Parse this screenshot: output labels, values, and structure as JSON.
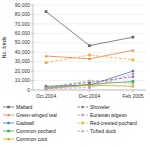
{
  "chart_data": {
    "type": "line",
    "categories": [
      "Oct 2004",
      "Dec 2004",
      "Feb 2005"
    ],
    "ylabel": "No. birds",
    "series": [
      {
        "name": "Mallard",
        "color": "#666666",
        "line_style": "solid",
        "marker": "square",
        "values": [
          83000,
          47000,
          56000
        ]
      },
      {
        "name": "Green-winged teal",
        "color": "#e8804a",
        "line_style": "solid",
        "marker": "triangle",
        "values": [
          36000,
          33000,
          42000
        ]
      },
      {
        "name": "Gadwall",
        "color": "#4477bb",
        "line_style": "solid",
        "marker": "circle",
        "values": [
          4000,
          5000,
          20000
        ]
      },
      {
        "name": "Common pochard",
        "color": "#33aa55",
        "line_style": "solid",
        "marker": "square",
        "values": [
          2000,
          6000,
          9000
        ]
      },
      {
        "name": "Common coot",
        "color": "#ccaa00",
        "line_style": "solid",
        "marker": "triangle",
        "values": [
          1500,
          5000,
          4000
        ]
      },
      {
        "name": "Shoveler",
        "color": "#9955aa",
        "line_style": "dashed",
        "marker": "diamond",
        "values": [
          3000,
          8000,
          14000
        ]
      },
      {
        "name": "Eurasian wigeon",
        "color": "#cc88cc",
        "line_style": "dashed",
        "marker": "circle",
        "values": [
          1500,
          2500,
          17000
        ]
      },
      {
        "name": "Red-crested pochard",
        "color": "#ffaa33",
        "line_style": "dashed",
        "marker": "square",
        "values": [
          29000,
          37000,
          32000
        ]
      },
      {
        "name": "Tufted duck",
        "color": "#aaaaaa",
        "line_style": "dashed",
        "marker": "triangle",
        "values": [
          2500,
          10000,
          7000
        ]
      }
    ],
    "ylim": [
      0,
      90000
    ],
    "yticks": [
      0,
      {
        "value": 10000,
        "label": "10,000"
      },
      {
        "value": 20000,
        "label": "20,000"
      },
      {
        "value": 30000,
        "label": "30,000"
      },
      {
        "value": 40000,
        "label": "40,000"
      },
      {
        "value": 50000,
        "label": "50,000"
      },
      {
        "value": 60000,
        "label": "60,000"
      },
      {
        "value": 70000,
        "label": "70,000"
      },
      {
        "value": 80000,
        "label": "80,000"
      },
      {
        "value": 90000,
        "label": "90,000"
      }
    ],
    "grid": true,
    "legend": "bottom"
  }
}
